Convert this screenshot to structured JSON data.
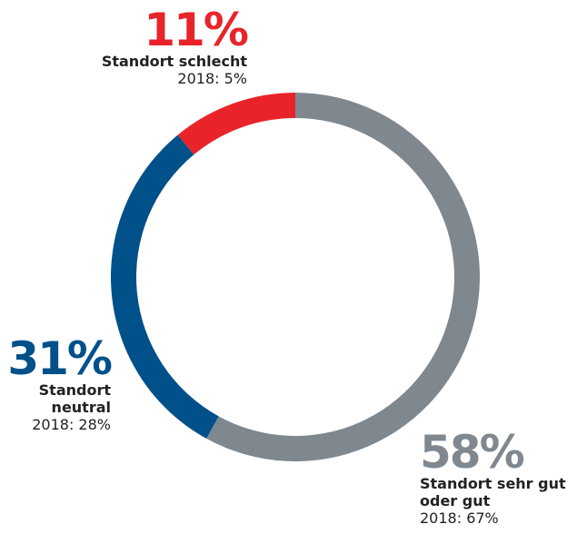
{
  "chart_data": {
    "type": "donut",
    "categories": [
      "Standort sehr gut oder gut",
      "Standort neutral",
      "Standort schlecht"
    ],
    "values": [
      58,
      31,
      11
    ],
    "value_labels": [
      "58%",
      "31%",
      "11%"
    ],
    "notes": [
      "2018: 67%",
      "2018: 28%",
      "2018: 5%"
    ],
    "colors": [
      "#7f878f",
      "#00508a",
      "#e8242a"
    ]
  }
}
